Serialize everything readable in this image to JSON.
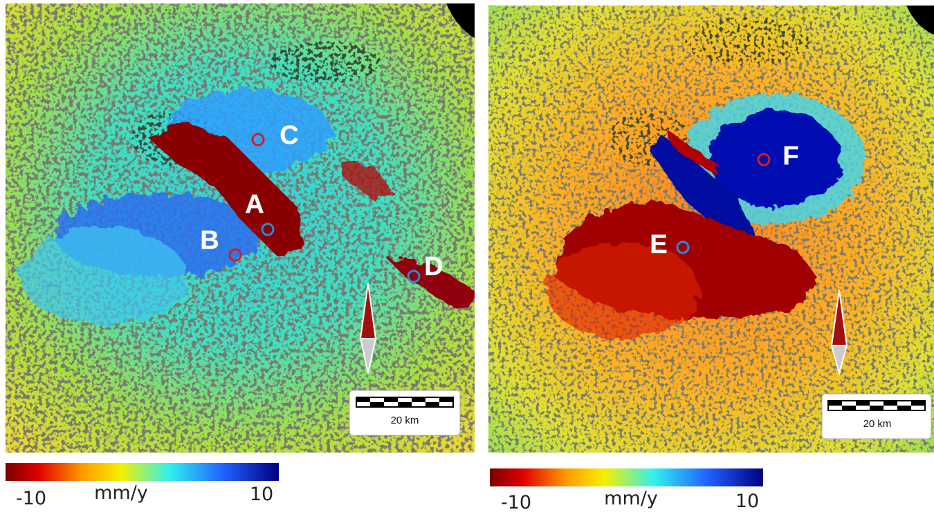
{
  "panels": [
    {
      "labels": [
        "A",
        "B",
        "C",
        "D"
      ],
      "scale_bar": "20 km",
      "colorbar": {
        "min": -10,
        "unit": "mm/y",
        "max": 10
      }
    },
    {
      "labels": [
        "E",
        "F"
      ],
      "scale_bar": "20 km",
      "colorbar": {
        "min": -10,
        "unit": "mm/y",
        "max": 10
      }
    }
  ]
}
